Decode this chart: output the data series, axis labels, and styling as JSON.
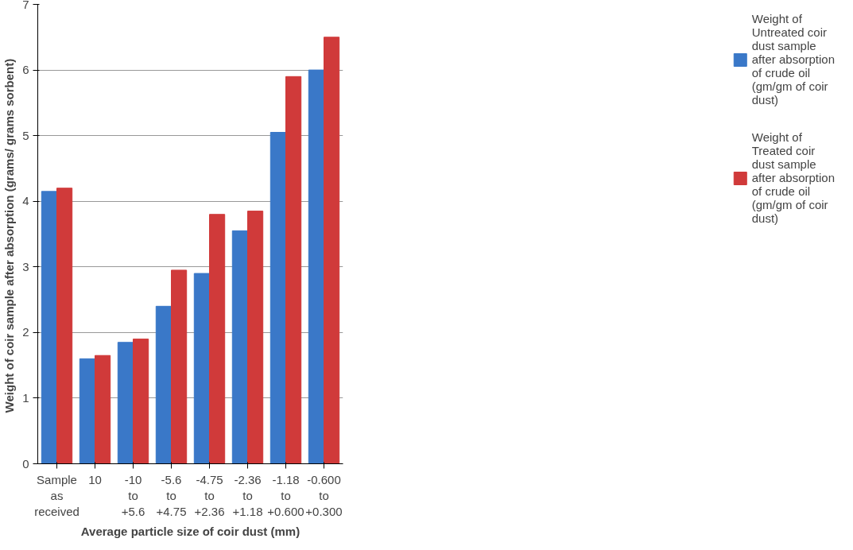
{
  "chart_data": {
    "type": "bar",
    "xlabel": "Average particle size of coir dust (mm)",
    "ylabel": "Weight of  coir sample after absorption (grams/ grams sorbent)",
    "categories": [
      "Sample as received",
      "10",
      "-10 to +5.6",
      "-5.6 to +4.75",
      "-4.75 to +2.36",
      "-2.36 to +1.18",
      "-1.18 to +0.600",
      "-0.600 to +0.300"
    ],
    "series": [
      {
        "name": "Weight of Untreated coir dust sample after absorption of crude oil (gm/gm of coir dust)",
        "color": "#3a78c8",
        "values": [
          4.15,
          1.6,
          1.85,
          2.4,
          2.9,
          3.55,
          5.05,
          6.0
        ]
      },
      {
        "name": "Weight of Treated coir dust sample after absorption of crude oil (gm/gm of coir dust)",
        "color": "#d03a3a",
        "values": [
          4.2,
          1.65,
          1.9,
          2.95,
          3.8,
          3.85,
          5.9,
          6.5
        ]
      }
    ],
    "ylim": [
      0,
      7
    ],
    "yticks": [
      0,
      1,
      2,
      3,
      4,
      5,
      6,
      7
    ],
    "grid": "y",
    "legend": "right"
  }
}
